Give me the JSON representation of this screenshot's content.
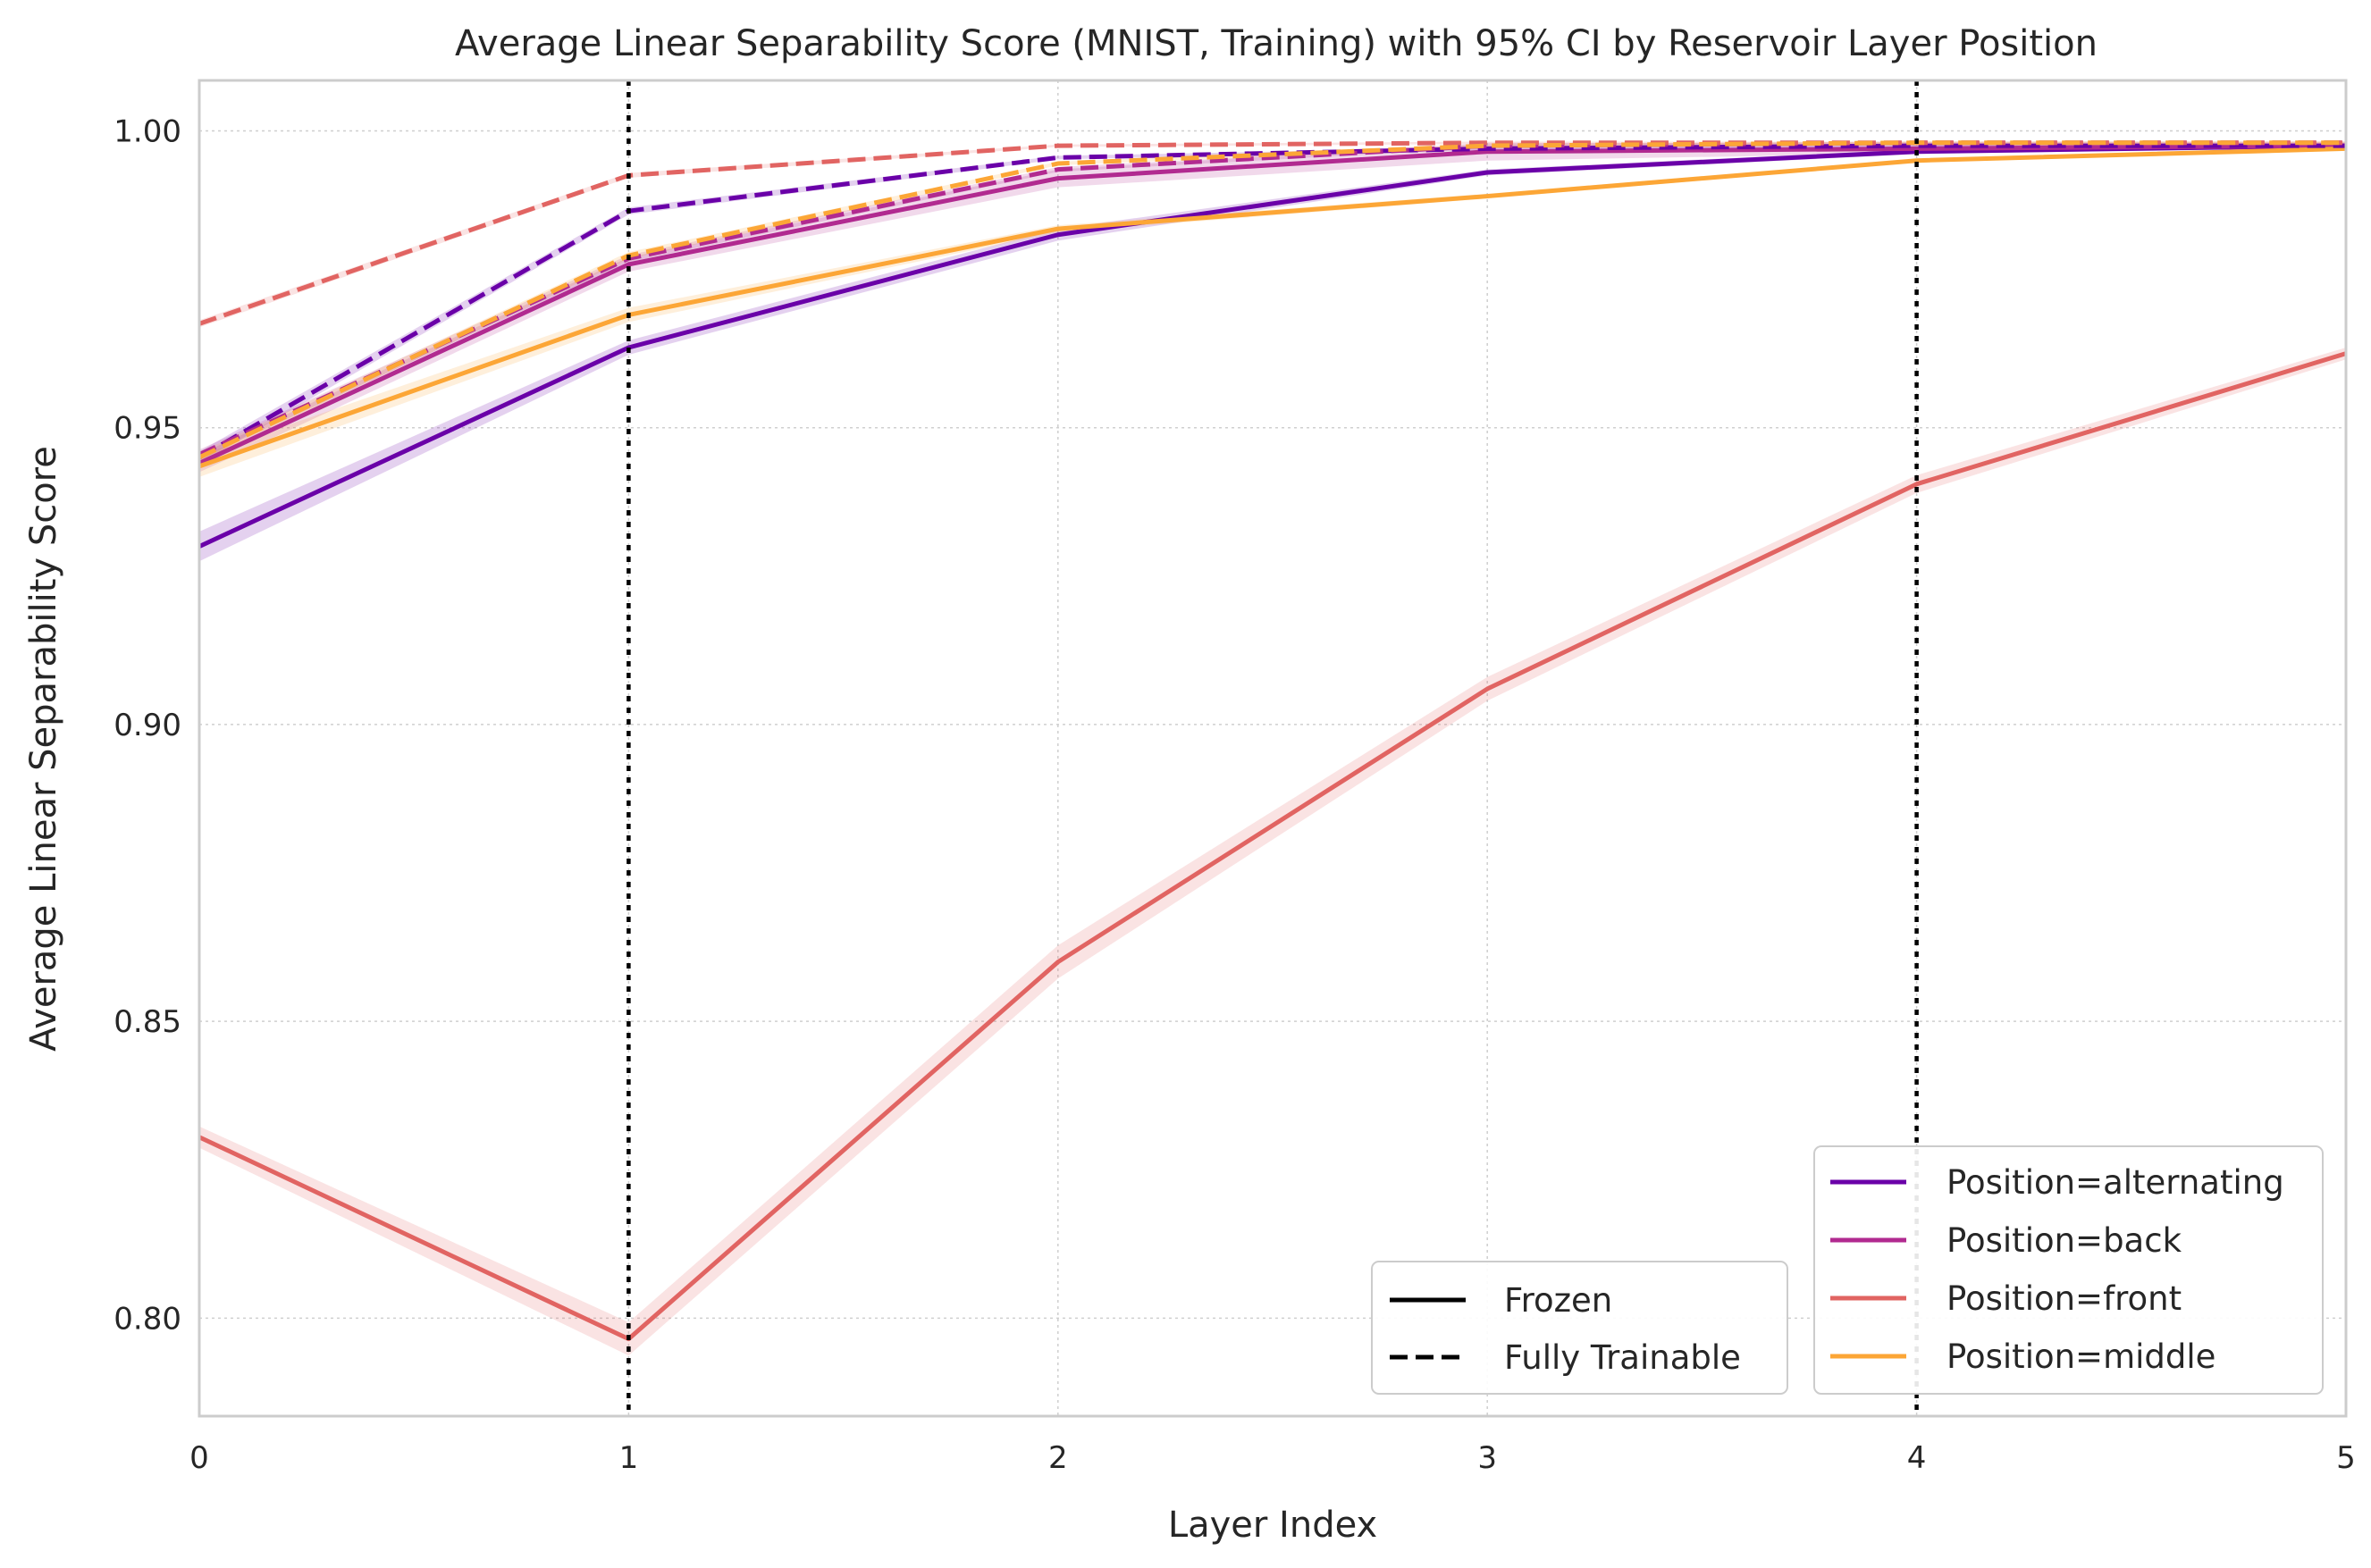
{
  "chart_data": {
    "type": "line",
    "title": "Average Linear Separability Score (MNIST, Training) with 95% CI by Reservoir Layer Position",
    "xlabel": "Layer Index",
    "ylabel": "Average Linear Separability Score",
    "xlim": [
      0,
      5
    ],
    "ylim": [
      0.7835,
      1.0085
    ],
    "xticks": [
      0,
      1,
      2,
      3,
      4,
      5
    ],
    "xtick_labels": [
      "0",
      "1",
      "2",
      "3",
      "4",
      "5"
    ],
    "yticks": [
      0.8,
      0.85,
      0.9,
      0.95,
      1.0
    ],
    "ytick_labels": [
      "0.80",
      "0.85",
      "0.90",
      "0.95",
      "1.00"
    ],
    "grid": true,
    "reference_lines_x": [
      1,
      4
    ],
    "x": [
      0,
      1,
      2,
      3,
      4,
      5
    ],
    "series": [
      {
        "name": "Position=alternating",
        "mode": "Frozen",
        "color": "#6a00a8",
        "values": [
          0.93,
          0.9635,
          0.9825,
          0.993,
          0.9965,
          0.9975
        ],
        "ci": [
          0.0025,
          0.0012,
          0.001,
          0.0005,
          0.0004,
          0.0003
        ]
      },
      {
        "name": "Position=back",
        "mode": "Frozen",
        "color": "#b12a90",
        "values": [
          0.944,
          0.9775,
          0.992,
          0.9965,
          0.997,
          0.9975
        ],
        "ci": [
          0.0015,
          0.0012,
          0.0015,
          0.0015,
          0.0008,
          0.0003
        ]
      },
      {
        "name": "Position=front",
        "mode": "Frozen",
        "color": "#e16462",
        "values": [
          0.8305,
          0.7965,
          0.86,
          0.906,
          0.9405,
          0.9625
        ],
        "ci": [
          0.0018,
          0.0028,
          0.0028,
          0.002,
          0.0015,
          0.001
        ]
      },
      {
        "name": "Position=middle",
        "mode": "Frozen",
        "color": "#fca636",
        "values": [
          0.9435,
          0.969,
          0.9835,
          0.989,
          0.995,
          0.997
        ],
        "ci": [
          0.0018,
          0.0012,
          0.0006,
          0.0004,
          0.0003,
          0.0002
        ]
      },
      {
        "name": "Position=alternating",
        "mode": "Fully Trainable",
        "color": "#6a00a8",
        "values": [
          0.945,
          0.9865,
          0.9955,
          0.997,
          0.9975,
          0.9975
        ],
        "ci": [
          0.001,
          0.0006,
          0.0003,
          0.0002,
          0.0002,
          0.0002
        ]
      },
      {
        "name": "Position=back",
        "mode": "Fully Trainable",
        "color": "#b12a90",
        "values": [
          0.9455,
          0.9785,
          0.9935,
          0.9975,
          0.998,
          0.998
        ],
        "ci": [
          0.0008,
          0.0006,
          0.0004,
          0.0003,
          0.0002,
          0.0002
        ]
      },
      {
        "name": "Position=front",
        "mode": "Fully Trainable",
        "color": "#e16462",
        "values": [
          0.9675,
          0.9925,
          0.9975,
          0.998,
          0.998,
          0.998
        ],
        "ci": [
          0.0006,
          0.0004,
          0.0002,
          0.0002,
          0.0002,
          0.0002
        ]
      },
      {
        "name": "Position=middle",
        "mode": "Fully Trainable",
        "color": "#fca636",
        "values": [
          0.945,
          0.979,
          0.9945,
          0.9975,
          0.998,
          0.998
        ],
        "ci": [
          0.0008,
          0.0006,
          0.0003,
          0.0002,
          0.0002,
          0.0002
        ]
      }
    ],
    "legend_style": {
      "placement": "lower-center",
      "entries": [
        {
          "label": "Frozen",
          "dash": "solid",
          "color": "#000000"
        },
        {
          "label": "Fully Trainable",
          "dash": "dashed",
          "color": "#000000"
        }
      ]
    },
    "legend_position": {
      "placement": "lower-right",
      "entries": [
        {
          "label": "Position=alternating",
          "color": "#6a00a8"
        },
        {
          "label": "Position=back",
          "color": "#b12a90"
        },
        {
          "label": "Position=front",
          "color": "#e16462"
        },
        {
          "label": "Position=middle",
          "color": "#fca636"
        }
      ]
    }
  }
}
